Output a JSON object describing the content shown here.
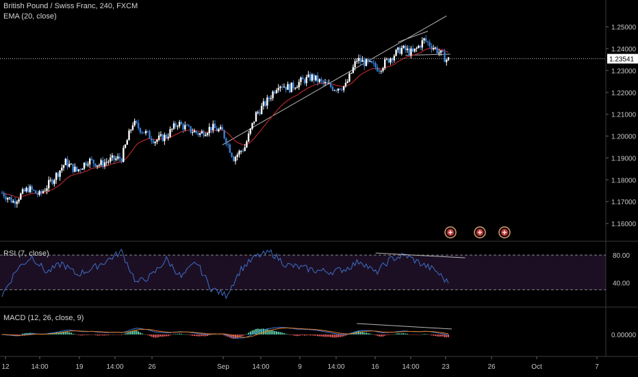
{
  "header": {
    "symbol": "British Pound / Swiss Franc, 240, FXCM",
    "ema_label": "EMA (20, close)"
  },
  "last_price_tag": "1.23541",
  "price_axis": {
    "ticks": [
      "1.25000",
      "1.24000",
      "1.23000",
      "1.22000",
      "1.21000",
      "1.20000",
      "1.19000",
      "1.18000",
      "1.17000",
      "1.16000"
    ]
  },
  "rsi_panel": {
    "label": "RSI (7, close)",
    "ticks": [
      "80.00",
      "40.00"
    ],
    "levels": [
      80,
      30
    ]
  },
  "macd_panel": {
    "label": "MACD (12, 26, close, 9)",
    "ticks": [
      "0.00000"
    ]
  },
  "time_axis": {
    "labels": [
      "12",
      "14:00",
      "19",
      "14:00",
      "26",
      "Sep",
      "14:00",
      "9",
      "14:00",
      "16",
      "14:00",
      "23",
      "26",
      "Oct",
      "7"
    ]
  },
  "colors": {
    "background": "#000000",
    "bull_candle": "#ffffff",
    "bear_candle": "#3a7fd5",
    "ema": "#b3262d",
    "rsi_line": "#3f6fc8",
    "rsi_band": "#1c0f24",
    "macd_line": "#3f7fe0",
    "signal_line": "#e07a27",
    "hist_pos": "#5fcfa8",
    "hist_neg": "#e05a5a",
    "trendline": "#b8b8b8",
    "event_icon": "#c23b3b"
  },
  "chart_data": {
    "type": "candlestick",
    "title": "British Pound / Swiss Franc, 240, FXCM",
    "price_range": [
      1.155,
      1.256
    ],
    "last_price": 1.23541,
    "price_path": [
      [
        0,
        1.174
      ],
      [
        6,
        1.17
      ],
      [
        14,
        1.176
      ],
      [
        20,
        1.173
      ],
      [
        28,
        1.181
      ],
      [
        34,
        1.188
      ],
      [
        40,
        1.184
      ],
      [
        46,
        1.189
      ],
      [
        52,
        1.187
      ],
      [
        58,
        1.189
      ],
      [
        64,
        1.19
      ],
      [
        70,
        1.206
      ],
      [
        76,
        1.202
      ],
      [
        82,
        1.198
      ],
      [
        88,
        1.2
      ],
      [
        94,
        1.206
      ],
      [
        100,
        1.203
      ],
      [
        106,
        1.201
      ],
      [
        112,
        1.204
      ],
      [
        118,
        1.202
      ],
      [
        124,
        1.19
      ],
      [
        130,
        1.195
      ],
      [
        136,
        1.21
      ],
      [
        142,
        1.216
      ],
      [
        148,
        1.224
      ],
      [
        154,
        1.222
      ],
      [
        160,
        1.225
      ],
      [
        166,
        1.227
      ],
      [
        172,
        1.224
      ],
      [
        178,
        1.222
      ],
      [
        184,
        1.223
      ],
      [
        190,
        1.235
      ],
      [
        196,
        1.233
      ],
      [
        202,
        1.231
      ],
      [
        208,
        1.236
      ],
      [
        214,
        1.24
      ],
      [
        220,
        1.238
      ],
      [
        226,
        1.244
      ],
      [
        232,
        1.24
      ],
      [
        238,
        1.235
      ]
    ],
    "series": [
      {
        "name": "EMA (20, close)",
        "values_ref": "derived"
      },
      {
        "name": "RSI (7, close)",
        "range": [
          15,
          90
        ]
      },
      {
        "name": "MACD (12, 26, close, 9)"
      }
    ],
    "rsi_path": [
      [
        0,
        22
      ],
      [
        8,
        60
      ],
      [
        16,
        78
      ],
      [
        24,
        55
      ],
      [
        32,
        68
      ],
      [
        40,
        52
      ],
      [
        48,
        60
      ],
      [
        56,
        72
      ],
      [
        64,
        85
      ],
      [
        72,
        40
      ],
      [
        80,
        50
      ],
      [
        88,
        74
      ],
      [
        96,
        48
      ],
      [
        104,
        70
      ],
      [
        112,
        32
      ],
      [
        120,
        22
      ],
      [
        128,
        60
      ],
      [
        136,
        78
      ],
      [
        144,
        84
      ],
      [
        152,
        66
      ],
      [
        160,
        62
      ],
      [
        168,
        58
      ],
      [
        176,
        56
      ],
      [
        184,
        60
      ],
      [
        192,
        72
      ],
      [
        200,
        54
      ],
      [
        208,
        74
      ],
      [
        216,
        80
      ],
      [
        224,
        68
      ],
      [
        232,
        58
      ],
      [
        238,
        42
      ]
    ],
    "trendlines": [
      {
        "name": "support",
        "from": [
          118,
          1.196
        ],
        "to": [
          238,
          1.255
        ]
      },
      {
        "name": "channel top",
        "from": [
          212,
          1.243
        ],
        "to": [
          228,
          1.248
        ]
      },
      {
        "name": "neckline",
        "from": [
          216,
          1.237
        ],
        "to": [
          240,
          1.2375
        ]
      },
      {
        "name": "rsi divergence",
        "from": [
          200,
          83
        ],
        "to": [
          248,
          76
        ]
      }
    ],
    "xlabel": "",
    "ylabel": ""
  }
}
